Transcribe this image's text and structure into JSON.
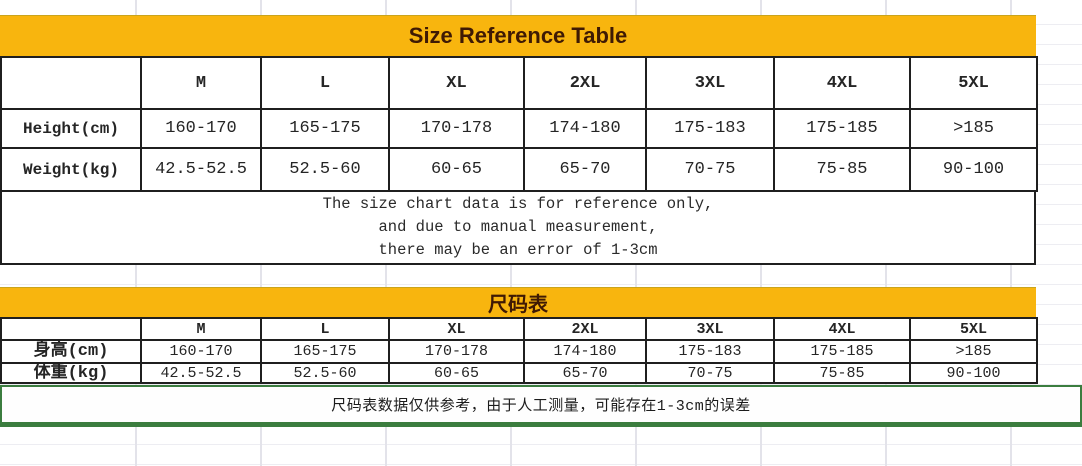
{
  "tables": [
    {
      "id": "en",
      "title": "Size Reference Table",
      "columns": [
        "M",
        "L",
        "XL",
        "2XL",
        "3XL",
        "4XL",
        "5XL"
      ],
      "rows": [
        {
          "label": "Height(cm)",
          "values": [
            "160-170",
            "165-175",
            "170-178",
            "174-180",
            "175-183",
            "175-185",
            ">185"
          ]
        },
        {
          "label": "Weight(kg)",
          "values": [
            "42.5-52.5",
            "52.5-60",
            "60-65",
            "65-70",
            "70-75",
            "75-85",
            "90-100"
          ]
        }
      ],
      "note_lines": [
        "The size chart data is for reference only,",
        "and due to manual measurement,",
        "there may be an error of 1-3cm"
      ]
    },
    {
      "id": "zh",
      "title": "尺码表",
      "columns": [
        "M",
        "L",
        "XL",
        "2XL",
        "3XL",
        "4XL",
        "5XL"
      ],
      "rows": [
        {
          "label": "身高(cm)",
          "values": [
            "160-170",
            "165-175",
            "170-178",
            "174-180",
            "175-183",
            "175-185",
            ">185"
          ]
        },
        {
          "label": "体重(kg)",
          "values": [
            "42.5-52.5",
            "52.5-60",
            "60-65",
            "65-70",
            "70-75",
            "75-85",
            "90-100"
          ]
        }
      ],
      "note": "尺码表数据仅供参考，由于人工测量，可能存在1-3cm的误差"
    }
  ],
  "colors": {
    "banner_yellow": "#F8B50E",
    "banner_text": "#3F1A04",
    "table_border": "#1F1F1F",
    "note_border_green": "#3B7D3F",
    "cell_text": "#252525"
  }
}
